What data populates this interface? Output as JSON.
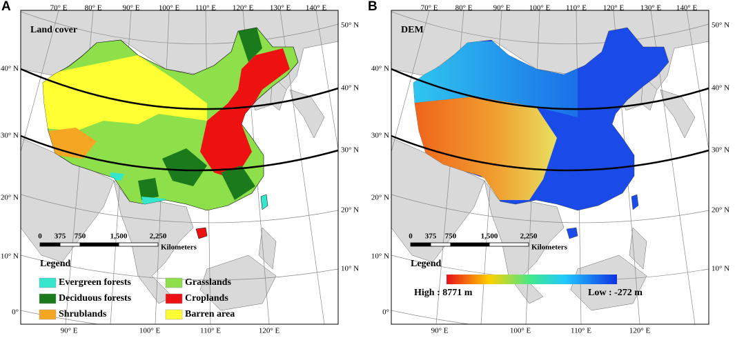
{
  "panels": [
    {
      "label": "A",
      "title": "Land cover",
      "top_lon": [
        "70° E",
        "80° E",
        "90° E",
        "100° E",
        "110° E",
        "120° E",
        "130° E",
        "140° E"
      ],
      "bottom_lon": [
        "90° E",
        "100° E",
        "110° E",
        "120° E"
      ],
      "left_lat": [
        "40° N",
        "30° N",
        "20° N",
        "10° N",
        "0°"
      ],
      "right_lat": [
        "50° N",
        "40° N",
        "30° N",
        "20° N",
        "10° N"
      ],
      "scale": {
        "ticks": [
          "0",
          "375",
          "750",
          "1,500",
          "2,250"
        ],
        "unit": "Kilometers"
      },
      "legend": {
        "title": "Legend",
        "items": [
          {
            "label": "Evergreen forests",
            "color": "#33e6cc"
          },
          {
            "label": "Deciduous forests",
            "color": "#1b7a1b"
          },
          {
            "label": "Shrublands",
            "color": "#f5a623"
          },
          {
            "label": "Grasslands",
            "color": "#8ee04a"
          },
          {
            "label": "Croplands",
            "color": "#ee1111"
          },
          {
            "label": "Barren area",
            "color": "#ffff33"
          }
        ]
      }
    },
    {
      "label": "B",
      "title": "DEM",
      "top_lon": [
        "70° E",
        "80° E",
        "90° E",
        "100° E",
        "110° E",
        "120° E",
        "130° E",
        "140° E"
      ],
      "bottom_lon": [
        "90° E",
        "100° E",
        "110° E",
        "120° E"
      ],
      "left_lat": [
        "40° N",
        "30° N",
        "20° N",
        "10° N",
        "0°"
      ],
      "right_lat": [
        "50° N",
        "40° N",
        "30° N",
        "20° N",
        "10° N"
      ],
      "scale": {
        "ticks": [
          "0",
          "375",
          "750",
          "1,500",
          "2,250"
        ],
        "unit": "Kilometers"
      },
      "legend": {
        "title": "Legend",
        "high": "High : 8771 m",
        "low": "Low : -272 m"
      }
    }
  ]
}
